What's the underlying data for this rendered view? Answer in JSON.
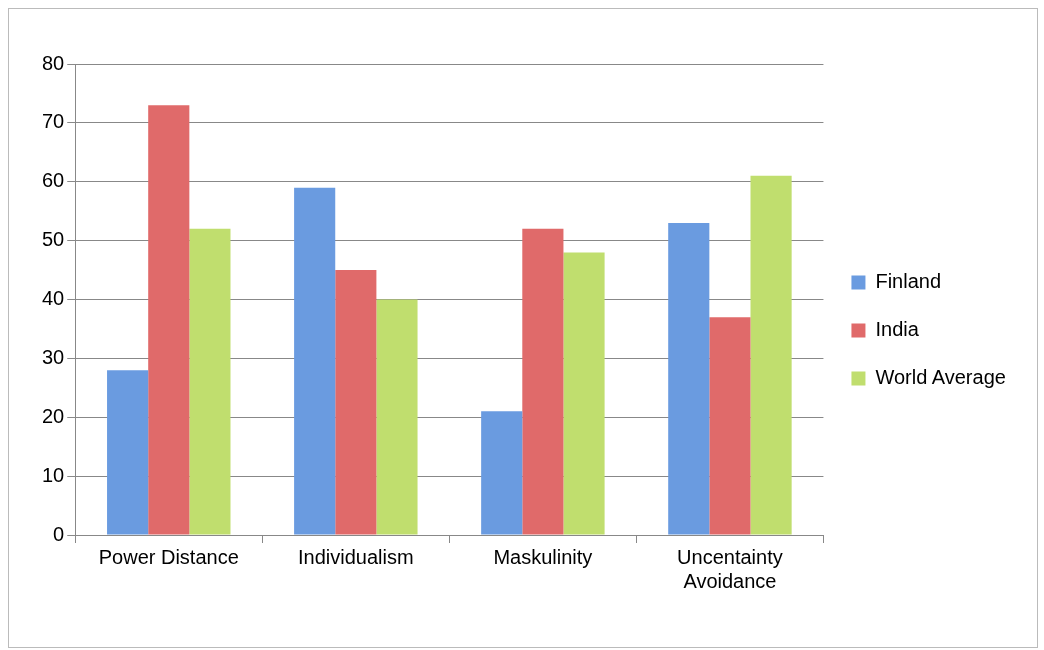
{
  "chart_data": {
    "type": "bar",
    "categories": [
      "Power Distance",
      "Individualism",
      "Maskulinity",
      "Uncentainty Avoidance"
    ],
    "series": [
      {
        "name": "Finland",
        "color": "#6a9be0",
        "values": [
          28,
          59,
          21,
          53
        ]
      },
      {
        "name": "India",
        "color": "#e06a6a",
        "values": [
          73,
          45,
          52,
          37
        ]
      },
      {
        "name": "World Average",
        "color": "#c0de6e",
        "values": [
          52,
          40,
          48,
          61
        ]
      }
    ],
    "ylim": [
      0,
      80
    ],
    "yticks": [
      0,
      10,
      20,
      30,
      40,
      50,
      60,
      70,
      80
    ],
    "grid": "y",
    "legend": "right"
  }
}
